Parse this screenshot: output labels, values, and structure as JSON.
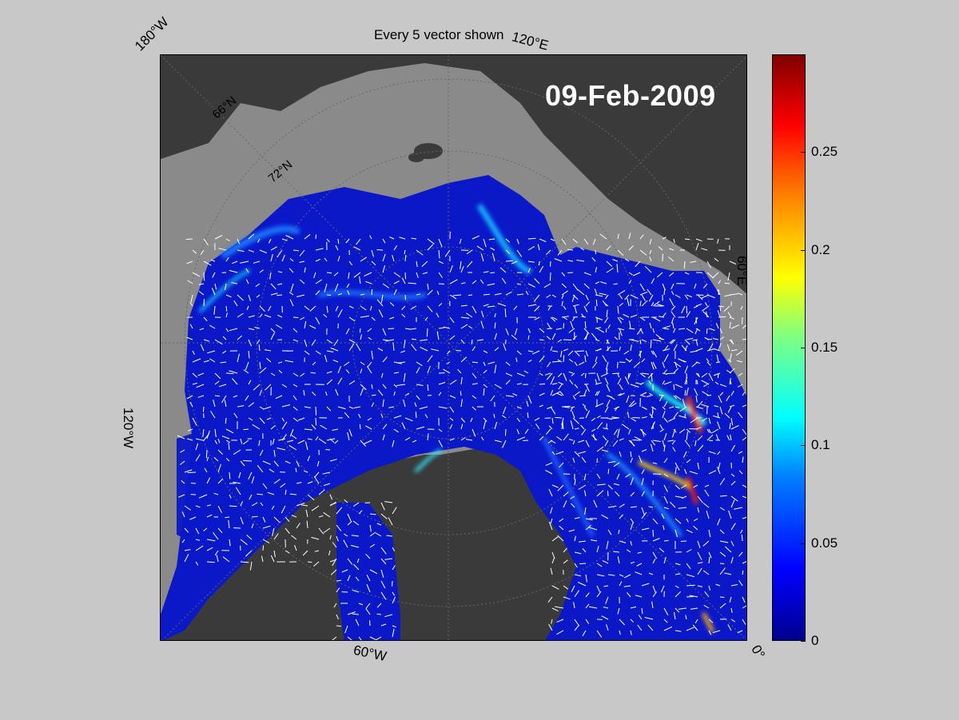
{
  "title": "Every 5 vector shown",
  "date": "09-Feb-2009",
  "edge_labels": {
    "w180": "180°W",
    "e120": "120°E",
    "e60": "60°E",
    "w120": "120°W",
    "w60": "60°W",
    "zero": "0°"
  },
  "lat_labels": {
    "n66": "66°N",
    "n72": "72°N"
  },
  "colorbar": {
    "ticks": [
      "0.25",
      "0.2",
      "0.15",
      "0.1",
      "0.05",
      "0"
    ],
    "tick_values": [
      0.25,
      0.2,
      0.15,
      0.1,
      0.05,
      0
    ],
    "min": 0,
    "max": 0.3,
    "colormap": "jet"
  },
  "colors": {
    "background": "#c8c8c8",
    "land": "#3a3a3a",
    "ocean_open": "#8a8a8a",
    "ice_low": "#0a18c8",
    "vectors": "#ffffff"
  }
}
